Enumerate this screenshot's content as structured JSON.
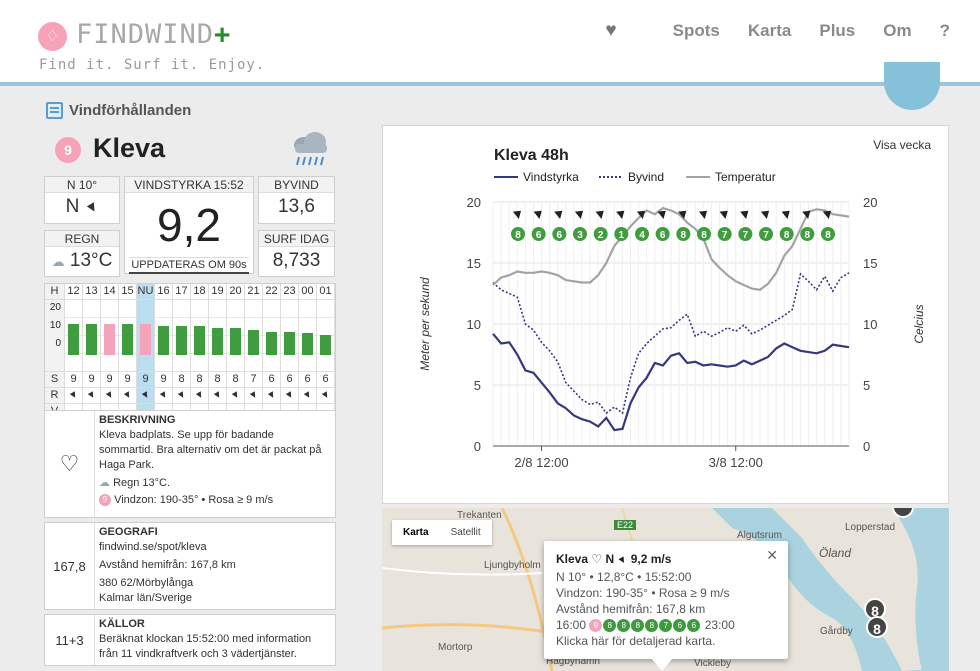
{
  "header": {
    "logo_text": "FINDWIND",
    "logo_plus": "+",
    "tagline": "Find it. Surf it. Enjoy.",
    "nav": [
      "Spots",
      "Karta",
      "Plus",
      "Om",
      "?"
    ]
  },
  "section_title": "Vindförhållanden",
  "spot": {
    "badge": "9",
    "name": "Kleva"
  },
  "stats": {
    "dir_label": "N 10°",
    "dir_value": "N",
    "wind_label": "VINDSTYRKA 15:52",
    "wind_value": "9,2",
    "updated": "UPPDATERAS OM 90s",
    "gust_label": "BYVIND",
    "gust_value": "13,6",
    "temp_label": "REGN",
    "temp_value": "13°C",
    "surf_label": "SURF IDAG",
    "surf_value": "8,733"
  },
  "hourly": {
    "hour_header": "H",
    "hours": [
      "12",
      "13",
      "14",
      "15",
      "NU",
      "16",
      "17",
      "18",
      "19",
      "20",
      "21",
      "22",
      "23",
      "00",
      "01"
    ],
    "bar_levels": [
      17,
      17,
      17,
      17,
      17,
      16,
      16,
      16,
      15,
      15,
      14,
      13,
      13,
      12,
      11
    ],
    "bar_colors": [
      "#3f9c3f",
      "#3f9c3f",
      "#f5a3bb",
      "#3f9c3f",
      "#f5a3bb",
      "#3f9c3f",
      "#3f9c3f",
      "#3f9c3f",
      "#3f9c3f",
      "#3f9c3f",
      "#3f9c3f",
      "#3f9c3f",
      "#3f9c3f",
      "#3f9c3f",
      "#3f9c3f"
    ],
    "s_label": "S",
    "s_values": [
      "9",
      "9",
      "9",
      "9",
      "9",
      "9",
      "8",
      "8",
      "8",
      "8",
      "7",
      "6",
      "6",
      "6",
      "6"
    ],
    "r_label": "R",
    "v_label": "V",
    "scale": [
      "20",
      "10",
      "0"
    ]
  },
  "description": {
    "title": "BESKRIVNING",
    "text": "Kleva badplats. Se upp för badande sommartid. Bra alternativ om det är packat på Haga Park.",
    "weather": "Regn 13°C.",
    "windzone": "Vindzon: 190-35° • Rosa ≥ 9 m/s"
  },
  "geo": {
    "left": "167,8",
    "title": "GEOGRAFI",
    "url": "findwind.se/spot/kleva",
    "distance": "Avstånd hemifrån: 167,8 km",
    "postal": "380 62/Mörbylånga",
    "region": "Kalmar län/Sverige"
  },
  "sources": {
    "left": "11+3",
    "title": "KÄLLOR",
    "text": "Beräknat klockan 15:52:00 med information från 11 vindkraftverk och 3 vädertjänster."
  },
  "chart_data": {
    "type": "line",
    "title": "Kleva 48h",
    "visa": "Visa vecka",
    "ylabel": "Meter per sekund",
    "y2label": "Celcius",
    "ylim": [
      0,
      20
    ],
    "y2lim": [
      0,
      20
    ],
    "yticks": [
      "0",
      "5",
      "10",
      "15",
      "20"
    ],
    "xticks": [
      {
        "label": "2/8 12:00",
        "x": 6
      },
      {
        "label": "3/8 12:00",
        "x": 30
      }
    ],
    "xlim": [
      0,
      44
    ],
    "dir_arrows": 16,
    "strength_values": [
      "8",
      "6",
      "6",
      "3",
      "2",
      "1",
      "4",
      "6",
      "8",
      "8",
      "7",
      "7",
      "7",
      "8",
      "8",
      "8"
    ],
    "series": [
      {
        "name": "Vindstyrka",
        "color": "#34387e",
        "style": "solid",
        "x": [
          0,
          1,
          2,
          3,
          4,
          5,
          6,
          7,
          8,
          9,
          10,
          11,
          12,
          13,
          14,
          15,
          16,
          17,
          18,
          19,
          20,
          21,
          22,
          23,
          24,
          25,
          26,
          27,
          28,
          29,
          30,
          31,
          32,
          33,
          34,
          35,
          36,
          37,
          38,
          39,
          40,
          41,
          42,
          43,
          44
        ],
        "values": [
          9.2,
          8.4,
          8.5,
          7.5,
          6.2,
          6.0,
          5.2,
          4.4,
          3.5,
          3.1,
          2.5,
          2.2,
          2.0,
          1.6,
          2.3,
          1.3,
          1.4,
          3.5,
          4.8,
          5.6,
          6.8,
          6.6,
          7.4,
          7.6,
          6.8,
          6.9,
          6.6,
          6.7,
          6.6,
          6.5,
          6.6,
          7.0,
          6.7,
          7.0,
          7.3,
          8.0,
          8.4,
          8.1,
          7.8,
          7.7,
          7.6,
          7.8,
          8.3,
          8.2,
          8.1
        ]
      },
      {
        "name": "Byvind",
        "color": "#34387e",
        "style": "dotted",
        "x": [
          0,
          1,
          2,
          3,
          4,
          5,
          6,
          7,
          8,
          9,
          10,
          11,
          12,
          13,
          14,
          15,
          16,
          17,
          18,
          19,
          20,
          21,
          22,
          23,
          24,
          25,
          26,
          27,
          28,
          29,
          30,
          31,
          32,
          33,
          34,
          35,
          36,
          37,
          38,
          39,
          40,
          41,
          42,
          43,
          44
        ],
        "values": [
          13.4,
          12.8,
          12.5,
          12.2,
          10.0,
          9.5,
          8.5,
          7.8,
          6.9,
          5.2,
          4.5,
          3.8,
          3.4,
          3.6,
          2.7,
          3.2,
          2.7,
          5.6,
          7.6,
          8.4,
          9.0,
          9.6,
          9.7,
          10.3,
          10.8,
          9.0,
          9.4,
          9.0,
          9.3,
          9.7,
          9.4,
          9.9,
          9.2,
          9.5,
          9.9,
          10.3,
          10.7,
          11.2,
          14.1,
          13.5,
          12.8,
          13.9,
          12.7,
          13.8,
          14.2
        ]
      },
      {
        "name": "Temperatur",
        "color": "#a3a3a3",
        "style": "solid",
        "x": [
          0,
          1,
          2,
          3,
          4,
          5,
          6,
          7,
          8,
          9,
          10,
          11,
          12,
          13,
          14,
          15,
          16,
          17,
          18,
          19,
          20,
          21,
          22,
          23,
          24,
          25,
          26,
          27,
          28,
          29,
          30,
          31,
          32,
          33,
          34,
          35,
          36,
          37,
          38,
          39,
          40,
          41,
          42,
          43,
          44
        ],
        "values": [
          13.2,
          13.8,
          14.0,
          14.3,
          14.2,
          14.2,
          14.3,
          14.2,
          14.0,
          13.6,
          13.5,
          13.4,
          13.4,
          14.0,
          15.0,
          16.4,
          17.2,
          18.0,
          18.7,
          19.3,
          19.0,
          19.5,
          19.3,
          19.0,
          18.3,
          17.8,
          17.0,
          15.3,
          14.6,
          14.0,
          13.5,
          13.2,
          12.9,
          12.8,
          13.3,
          14.2,
          15.6,
          16.4,
          17.8,
          19.2,
          19.4,
          19.3,
          19.0,
          18.9,
          18.8
        ]
      }
    ]
  },
  "map": {
    "tab_map": "Karta",
    "tab_sat": "Satellit",
    "popup_name": "Kleva",
    "popup_dir": "N",
    "popup_speed": "9,2 m/s",
    "popup_line1": "N 10° • 12,8°C • 15:52:00",
    "popup_line2": "Vindzon: 190-35° • Rosa ≥ 9 m/s",
    "popup_line3": "Avstånd hemifrån: 167,8 km",
    "popup_time_from": "16:00",
    "popup_time_to": "23:00",
    "popup_dots": [
      "9",
      "8",
      "8",
      "8",
      "8",
      "7",
      "6",
      "6"
    ],
    "popup_link": "Klicka här för detaljerad karta.",
    "labels": [
      "Trekanten",
      "E22",
      "Algutsrum",
      "Lopperstad",
      "Öland",
      "Ljungbyholm",
      "Gårdby",
      "Mortorp",
      "Hagbynamn",
      "Vickleby"
    ],
    "marker_values": [
      "8",
      "8"
    ]
  }
}
